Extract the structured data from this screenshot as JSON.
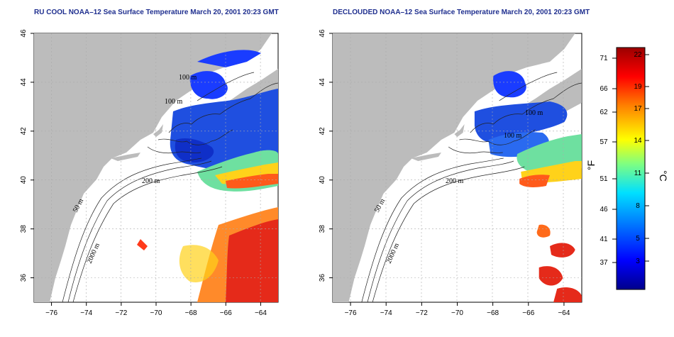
{
  "panels": [
    {
      "title": "RU COOL NOAA–12 Sea Surface Temperature March 20, 2001 20:23 GMT",
      "contour_labels": [
        "100 m",
        "100 m",
        "200 m",
        "50 m",
        "2000 m"
      ]
    },
    {
      "title": "DECLOUDED NOAA–12 Sea Surface Temperature March 20, 2001 20:23 GMT",
      "contour_labels": [
        "100 m",
        "100 m",
        "200 m",
        "50 m",
        "2000 m"
      ]
    }
  ],
  "axes": {
    "x_ticks": [
      "−76",
      "−74",
      "−72",
      "−70",
      "−68",
      "−66",
      "−64"
    ],
    "y_ticks": [
      "36",
      "38",
      "40",
      "42",
      "44",
      "46"
    ],
    "x_range": [
      -77,
      -63
    ],
    "y_range": [
      35,
      46
    ]
  },
  "colorbar": {
    "fahrenheit_ticks": [
      "71",
      "66",
      "62",
      "57",
      "51",
      "46",
      "41",
      "37"
    ],
    "celsius_ticks": [
      "22",
      "19",
      "17",
      "14",
      "11",
      "8",
      "5",
      "3"
    ],
    "fahrenheit_label": "°F",
    "celsius_label": "°C",
    "colors": [
      "#00008b",
      "#0000ff",
      "#0080ff",
      "#00e0ff",
      "#80ff80",
      "#ffff00",
      "#ff8000",
      "#ff0000",
      "#9b0000"
    ]
  }
}
